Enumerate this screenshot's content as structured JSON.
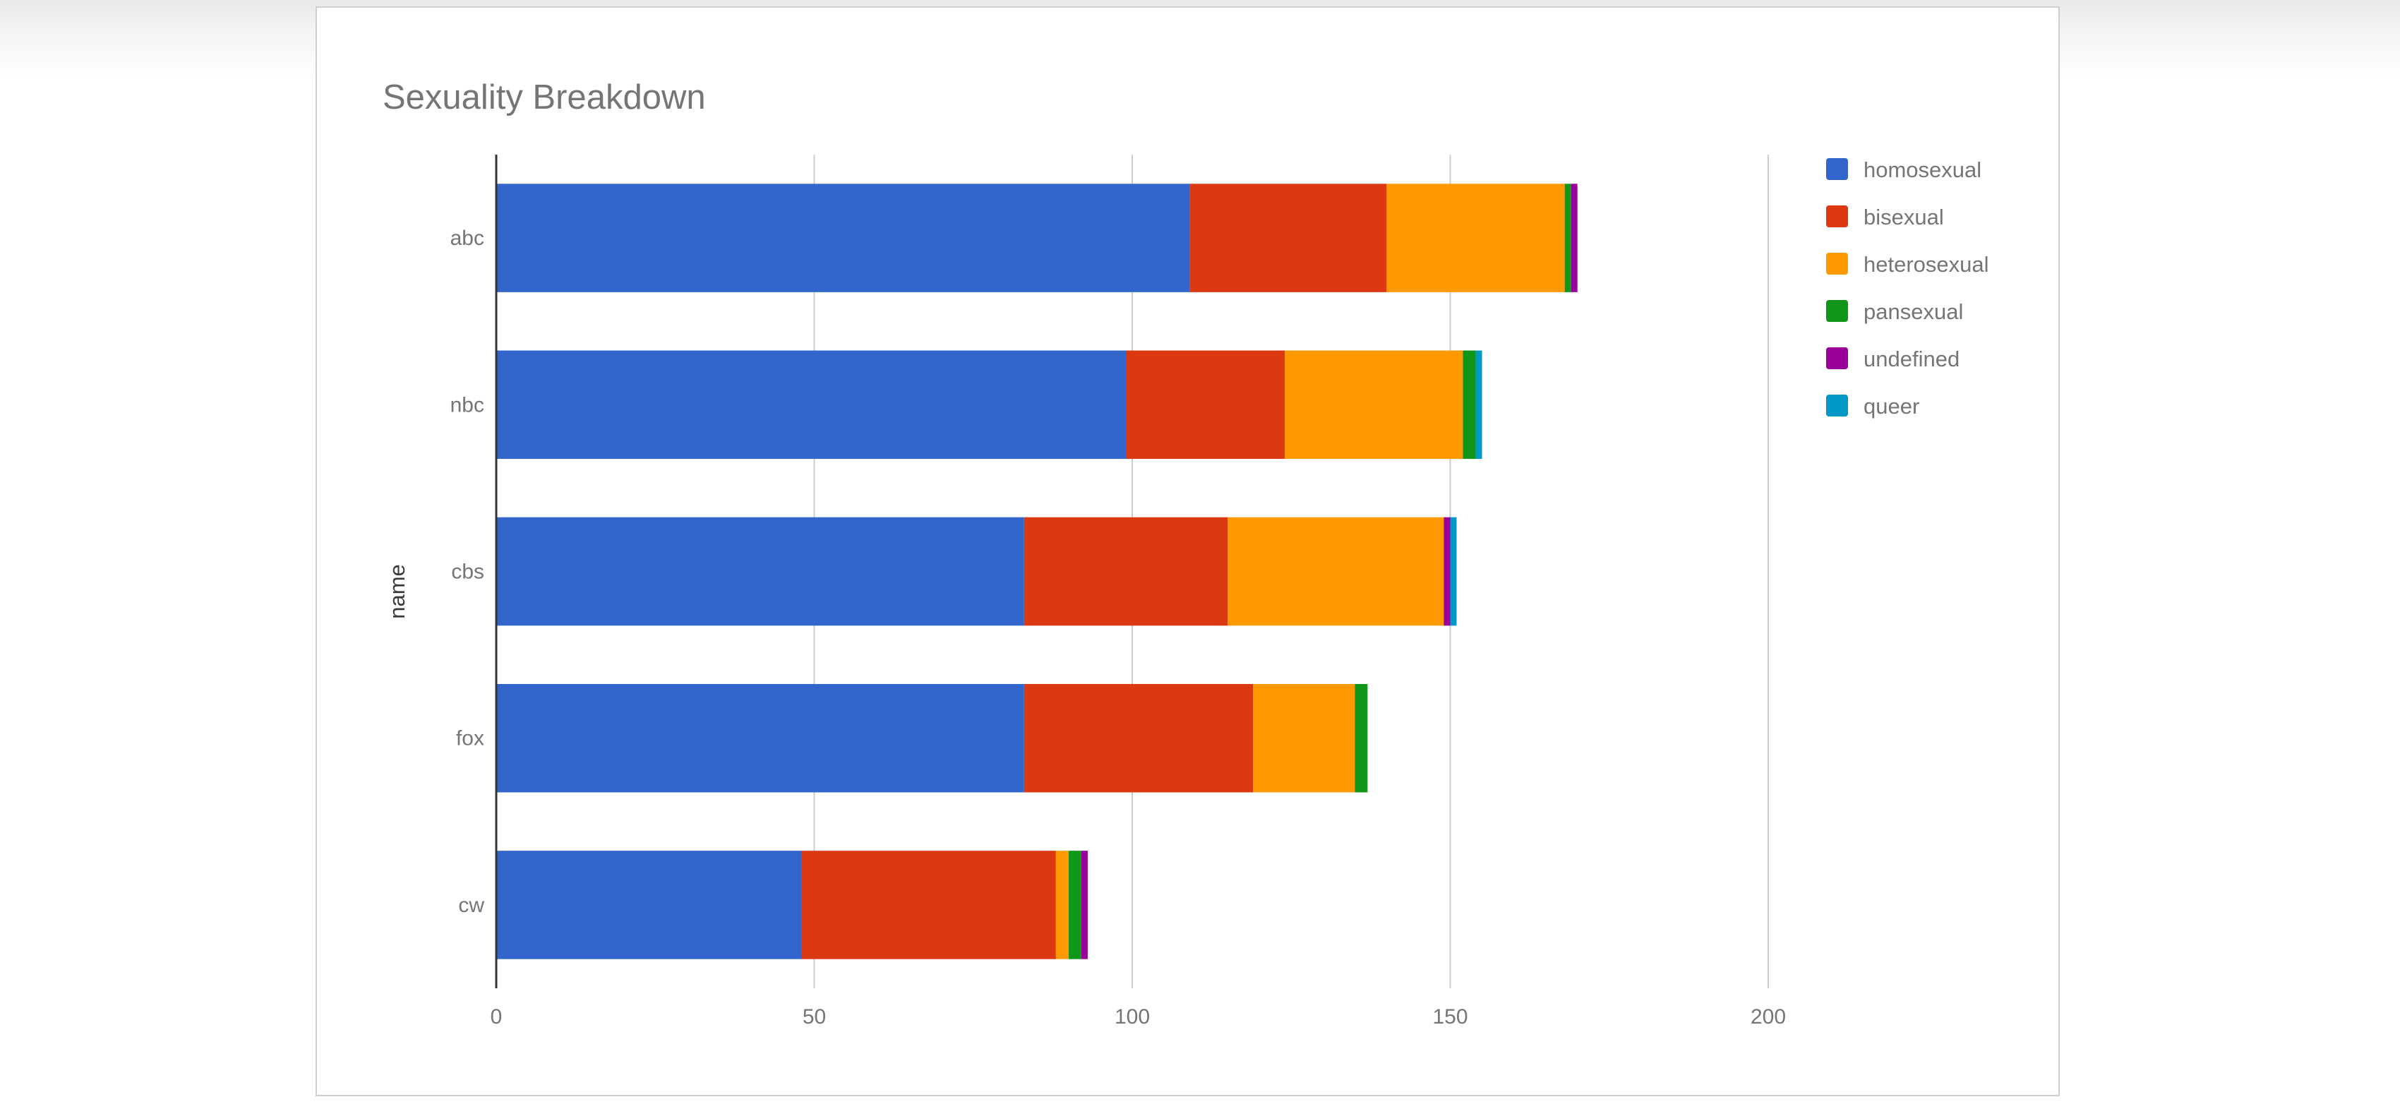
{
  "chart_data": {
    "type": "bar",
    "orientation": "horizontal",
    "stacked": true,
    "title": "Sexuality Breakdown",
    "xlabel": "",
    "ylabel": "name",
    "categories": [
      "abc",
      "nbc",
      "cbs",
      "fox",
      "cw"
    ],
    "xlim": [
      0,
      200
    ],
    "xticks": [
      0,
      50,
      100,
      150,
      200
    ],
    "grid": true,
    "legend_position": "right",
    "series": [
      {
        "name": "homosexual",
        "color": "#3366cc",
        "values": [
          109,
          99,
          83,
          83,
          48
        ]
      },
      {
        "name": "bisexual",
        "color": "#dc3912",
        "values": [
          31,
          25,
          32,
          36,
          40
        ]
      },
      {
        "name": "heterosexual",
        "color": "#ff9900",
        "values": [
          28,
          28,
          34,
          16,
          2
        ]
      },
      {
        "name": "pansexual",
        "color": "#109618",
        "values": [
          1,
          2,
          0,
          2,
          2
        ]
      },
      {
        "name": "undefined",
        "color": "#990099",
        "values": [
          1,
          0,
          1,
          0,
          1
        ]
      },
      {
        "name": "queer",
        "color": "#0099c6",
        "values": [
          0,
          1,
          1,
          0,
          0
        ]
      }
    ]
  }
}
